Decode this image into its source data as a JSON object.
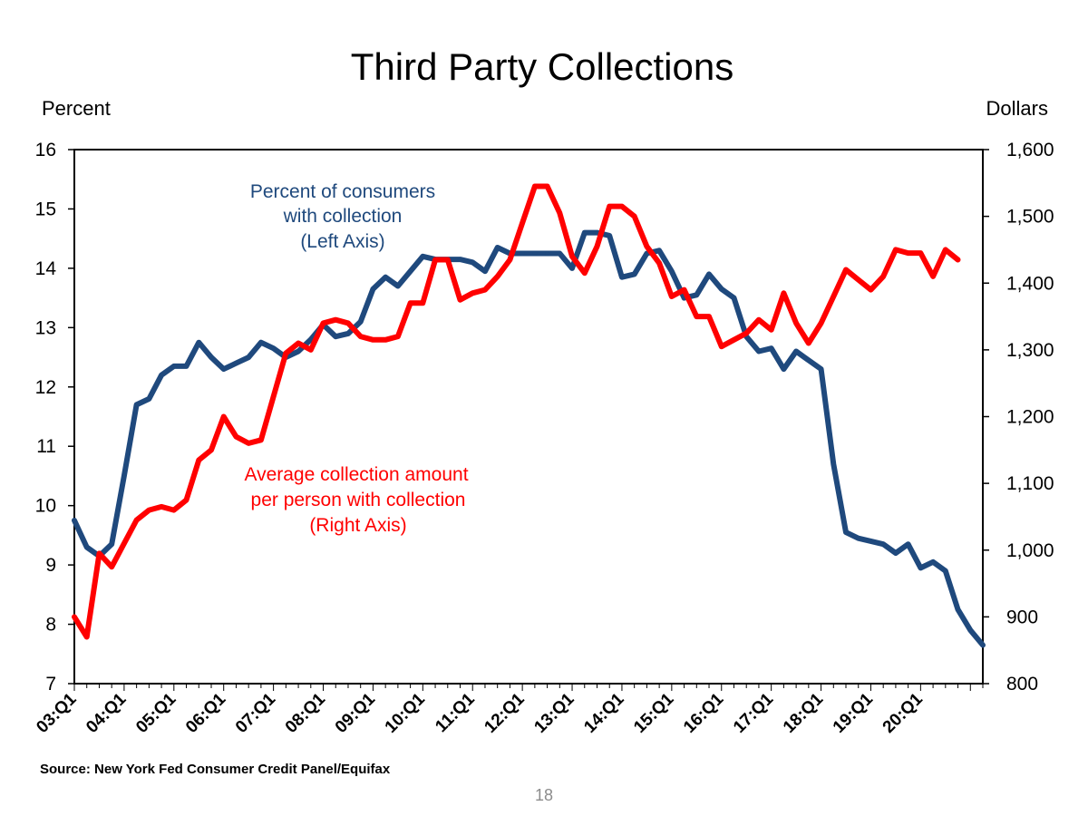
{
  "chart_data": {
    "type": "line",
    "title": "Third Party Collections",
    "y_left_label": "Percent",
    "y_right_label": "Dollars",
    "y_left_lim": [
      7,
      16
    ],
    "y_right_lim": [
      800,
      1600
    ],
    "y_left_ticks": [
      "16",
      "15",
      "14",
      "13",
      "12",
      "11",
      "10",
      "9",
      "8",
      "7"
    ],
    "y_right_ticks": [
      "1,600",
      "1,500",
      "1,400",
      "1,300",
      "1,200",
      "1,100",
      "1,000",
      "900",
      "800"
    ],
    "x_tick_labels": [
      "03:Q1",
      "04:Q1",
      "05:Q1",
      "06:Q1",
      "07:Q1",
      "08:Q1",
      "09:Q1",
      "10:Q1",
      "11:Q1",
      "12:Q1",
      "13:Q1",
      "14:Q1",
      "15:Q1",
      "16:Q1",
      "17:Q1",
      "18:Q1",
      "19:Q1",
      "20:Q1"
    ],
    "x_start": "2003:Q1",
    "series": [
      {
        "name": "Percent of consumers with collection (Left Axis)",
        "axis": "left",
        "color": "#1F497D",
        "values": [
          9.75,
          9.3,
          9.15,
          9.35,
          10.5,
          11.7,
          11.8,
          12.2,
          12.35,
          12.35,
          12.75,
          12.5,
          12.3,
          12.4,
          12.5,
          12.75,
          12.65,
          12.5,
          12.6,
          12.8,
          13.05,
          12.85,
          12.9,
          13.1,
          13.65,
          13.85,
          13.7,
          13.95,
          14.2,
          14.15,
          14.15,
          14.15,
          14.1,
          13.95,
          14.35,
          14.25,
          14.25,
          14.25,
          14.25,
          14.25,
          14.0,
          14.6,
          14.6,
          14.55,
          13.85,
          13.9,
          14.25,
          14.3,
          13.95,
          13.5,
          13.55,
          13.9,
          13.65,
          13.5,
          12.85,
          12.6,
          12.65,
          12.3,
          12.6,
          12.45,
          12.3,
          10.7,
          9.55,
          9.45,
          9.4,
          9.35,
          9.2,
          9.35,
          8.95,
          9.05,
          8.9,
          8.25,
          7.9,
          7.65
        ]
      },
      {
        "name": "Average collection amount per person with collection (Right Axis)",
        "axis": "right",
        "color": "#FF0000",
        "values": [
          900,
          870,
          995,
          975,
          1010,
          1045,
          1060,
          1065,
          1060,
          1075,
          1135,
          1150,
          1200,
          1170,
          1160,
          1165,
          1230,
          1295,
          1310,
          1300,
          1340,
          1345,
          1340,
          1320,
          1315,
          1315,
          1320,
          1370,
          1370,
          1435,
          1435,
          1375,
          1385,
          1390,
          1410,
          1435,
          1490,
          1545,
          1545,
          1505,
          1440,
          1415,
          1455,
          1515,
          1515,
          1500,
          1455,
          1430,
          1380,
          1390,
          1350,
          1350,
          1305,
          1315,
          1325,
          1345,
          1330,
          1385,
          1340,
          1310,
          1340,
          1380,
          1420,
          1405,
          1390,
          1410,
          1450,
          1445,
          1445,
          1410,
          1450,
          1435
        ]
      }
    ],
    "annotations": {
      "blue_lines": [
        "Percent of consumers",
        "with collection",
        "(Left Axis)"
      ],
      "red_lines": [
        "Average collection amount",
        "per person with collection",
        "(Right Axis)"
      ]
    }
  },
  "footer": {
    "source": "Source: New York Fed Consumer Credit Panel/Equifax",
    "page_number": "18"
  }
}
